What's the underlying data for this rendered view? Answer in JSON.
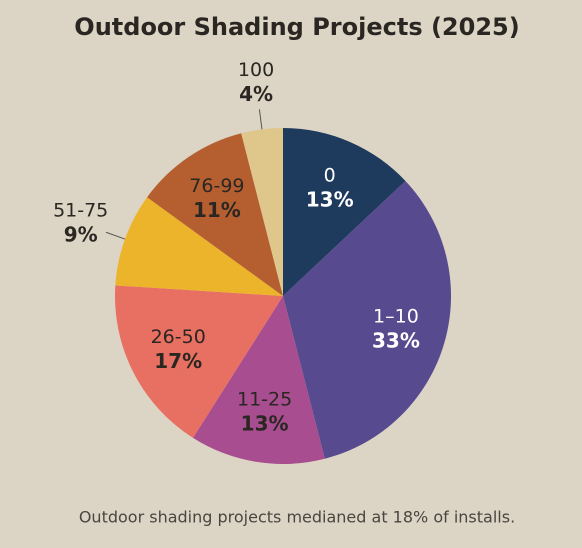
{
  "chart_data": {
    "type": "pie",
    "title": "Outdoor Shading Projects (2025)",
    "categories": [
      "0",
      "1–10",
      "11-25",
      "26-50",
      "51-75",
      "76-99",
      "100"
    ],
    "values": [
      13,
      33,
      13,
      17,
      9,
      11,
      4
    ],
    "value_labels": [
      "13%",
      "33%",
      "13%",
      "17%",
      "9%",
      "11%",
      "4%"
    ],
    "colors": [
      "#1e3a5c",
      "#574a8f",
      "#a84d8f",
      "#e87062",
      "#ebb42a",
      "#b55f31",
      "#dfc78c"
    ],
    "caption": "Outdoor shading projects medianed at 18% of installs."
  }
}
